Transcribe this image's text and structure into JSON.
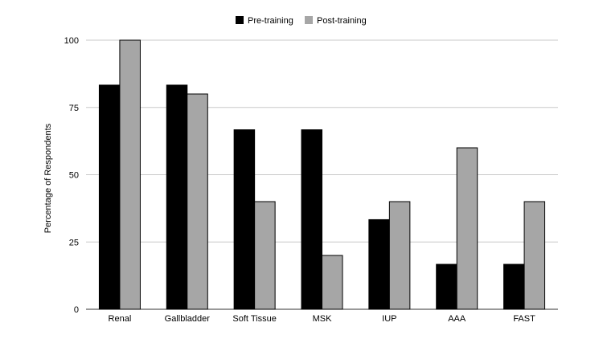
{
  "chart_data": {
    "type": "bar",
    "title": "",
    "xlabel": "",
    "ylabel": "Percentage of Respondents",
    "categories": [
      "Renal",
      "Gallbladder",
      "Soft Tissue",
      "MSK",
      "IUP",
      "AAA",
      "FAST"
    ],
    "series": [
      {
        "name": "Pre-training",
        "color": "#000000",
        "values": [
          83.3,
          83.3,
          66.7,
          66.7,
          33.3,
          16.7,
          16.7
        ]
      },
      {
        "name": "Post-training",
        "color": "#a6a6a6",
        "values": [
          100,
          80,
          40,
          20,
          40,
          60,
          40
        ]
      }
    ],
    "ylim": [
      0,
      100
    ],
    "yticks": [
      0,
      25,
      50,
      75,
      100
    ],
    "grid": true,
    "legend": "top-center"
  }
}
